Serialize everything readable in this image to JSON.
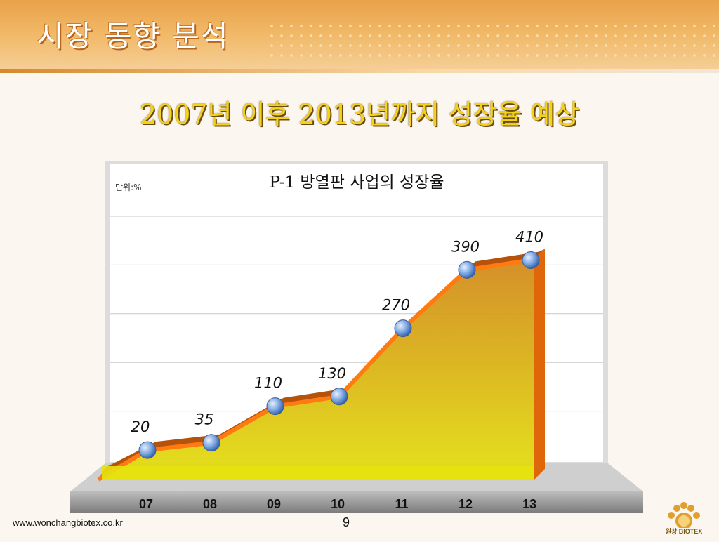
{
  "header": {
    "title": "시장 동향 분석"
  },
  "subtitle": "2007년 이후 2013년까지 성장율  예상",
  "chart_data": {
    "type": "area",
    "title": "P-1 방열판 사업의 성장율",
    "unit_label": "단위:%",
    "categories": [
      "07",
      "08",
      "09",
      "10",
      "11",
      "12",
      "13"
    ],
    "values": [
      20,
      35,
      110,
      130,
      270,
      390,
      410
    ],
    "ylim": [
      0,
      500
    ],
    "grid": true,
    "legend": "none",
    "colors": {
      "line": "#ff7a10",
      "fill_top": "#d9a21e",
      "fill_bottom": "#dede10",
      "marker": "#4a7fd0"
    }
  },
  "footer": {
    "url": "www.wonchangbiotex.co.kr",
    "page": "9",
    "logo_text": "원창 BIOTEX"
  }
}
